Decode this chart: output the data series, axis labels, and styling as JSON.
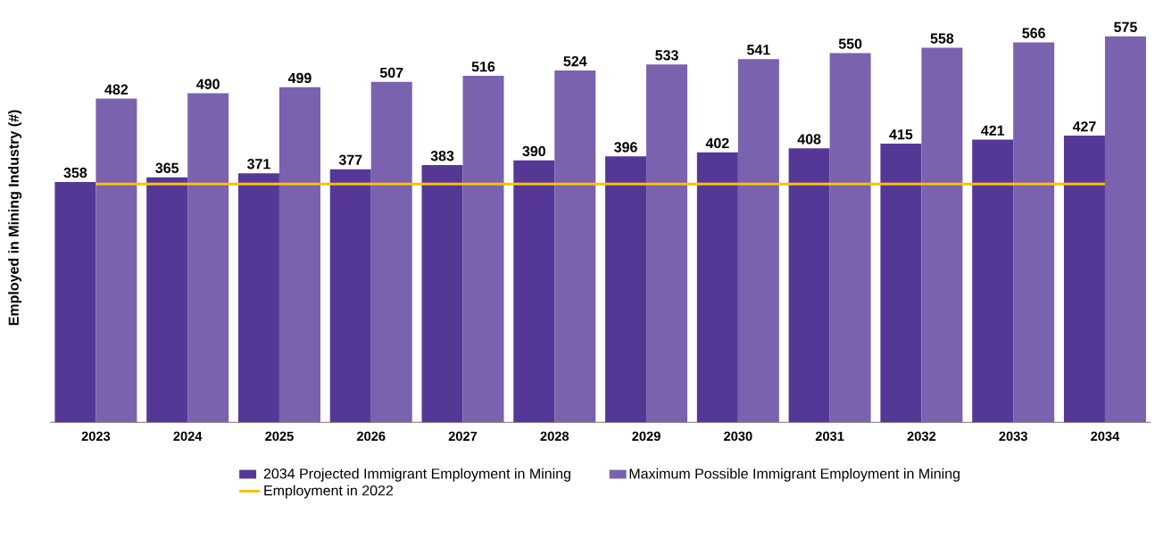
{
  "chart_data": {
    "type": "bar",
    "ylabel": "Employed in Mining Industry (#)",
    "categories": [
      "2023",
      "2024",
      "2025",
      "2026",
      "2027",
      "2028",
      "2029",
      "2030",
      "2031",
      "2032",
      "2033",
      "2034"
    ],
    "series": [
      {
        "name": "2034 Projected Immigrant Employment in Mining",
        "color": "#553896",
        "values": [
          358,
          365,
          371,
          377,
          383,
          390,
          396,
          402,
          408,
          415,
          421,
          427
        ]
      },
      {
        "name": "Maximum Possible Immigrant Employment in Mining",
        "color": "#7a62ae",
        "values": [
          482,
          490,
          499,
          507,
          516,
          524,
          533,
          541,
          550,
          558,
          566,
          575
        ]
      }
    ],
    "ref_lines": [
      {
        "axis": "y",
        "value": 355,
        "label": "Employment in 2022",
        "color": "#ffc000"
      }
    ],
    "tick_labels": "x",
    "legend": "bottom",
    "data_labels": true
  }
}
